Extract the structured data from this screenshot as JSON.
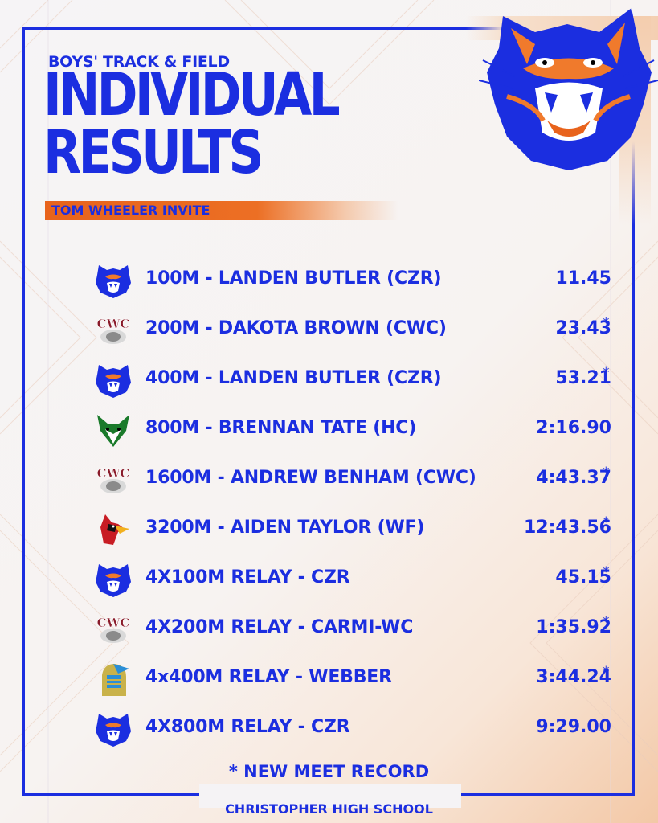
{
  "header": {
    "subtitle": "BOYS' TRACK & FIELD",
    "title_line1": "INDIVIDUAL",
    "title_line2": "RESULTS",
    "event": "TOM WHEELER INVITE"
  },
  "colors": {
    "primary_blue": "#1b2ee0",
    "accent_orange": "#e8631c"
  },
  "results": [
    {
      "logo": "wildcat-logo",
      "event": "100M - LANDEN BUTLER (CZR)",
      "time": "11.45",
      "record": ""
    },
    {
      "logo": "cwc-logo",
      "event": "200M - DAKOTA BROWN (CWC)",
      "time": "23.43",
      "record": "*"
    },
    {
      "logo": "wildcat-logo",
      "event": "400M - LANDEN BUTLER (CZR)",
      "time": "53.21",
      "record": "*"
    },
    {
      "logo": "fox-logo",
      "event": "800M - BRENNAN TATE (HC)",
      "time": "2:16.90",
      "record": ""
    },
    {
      "logo": "cwc-logo",
      "event": "1600M - ANDREW BENHAM (CWC)",
      "time": "4:43.37",
      "record": "*"
    },
    {
      "logo": "cardinal-logo",
      "event": "3200M - AIDEN TAYLOR (WF)",
      "time": "12:43.56",
      "record": "*"
    },
    {
      "logo": "wildcat-logo",
      "event": "4X100M RELAY - CZR",
      "time": "45.15",
      "record": "*"
    },
    {
      "logo": "cwc-logo",
      "event": "4X200M RELAY - CARMI-WC",
      "time": "1:35.92",
      "record": "*"
    },
    {
      "logo": "knight-logo",
      "event": "4x400M RELAY - WEBBER",
      "time": "3:44.24",
      "record": "*"
    },
    {
      "logo": "wildcat-logo",
      "event": "4X800M RELAY - CZR",
      "time": "9:29.00",
      "record": ""
    }
  ],
  "footnote": "* NEW MEET RECORD",
  "school": "CHRISTOPHER HIGH SCHOOL"
}
